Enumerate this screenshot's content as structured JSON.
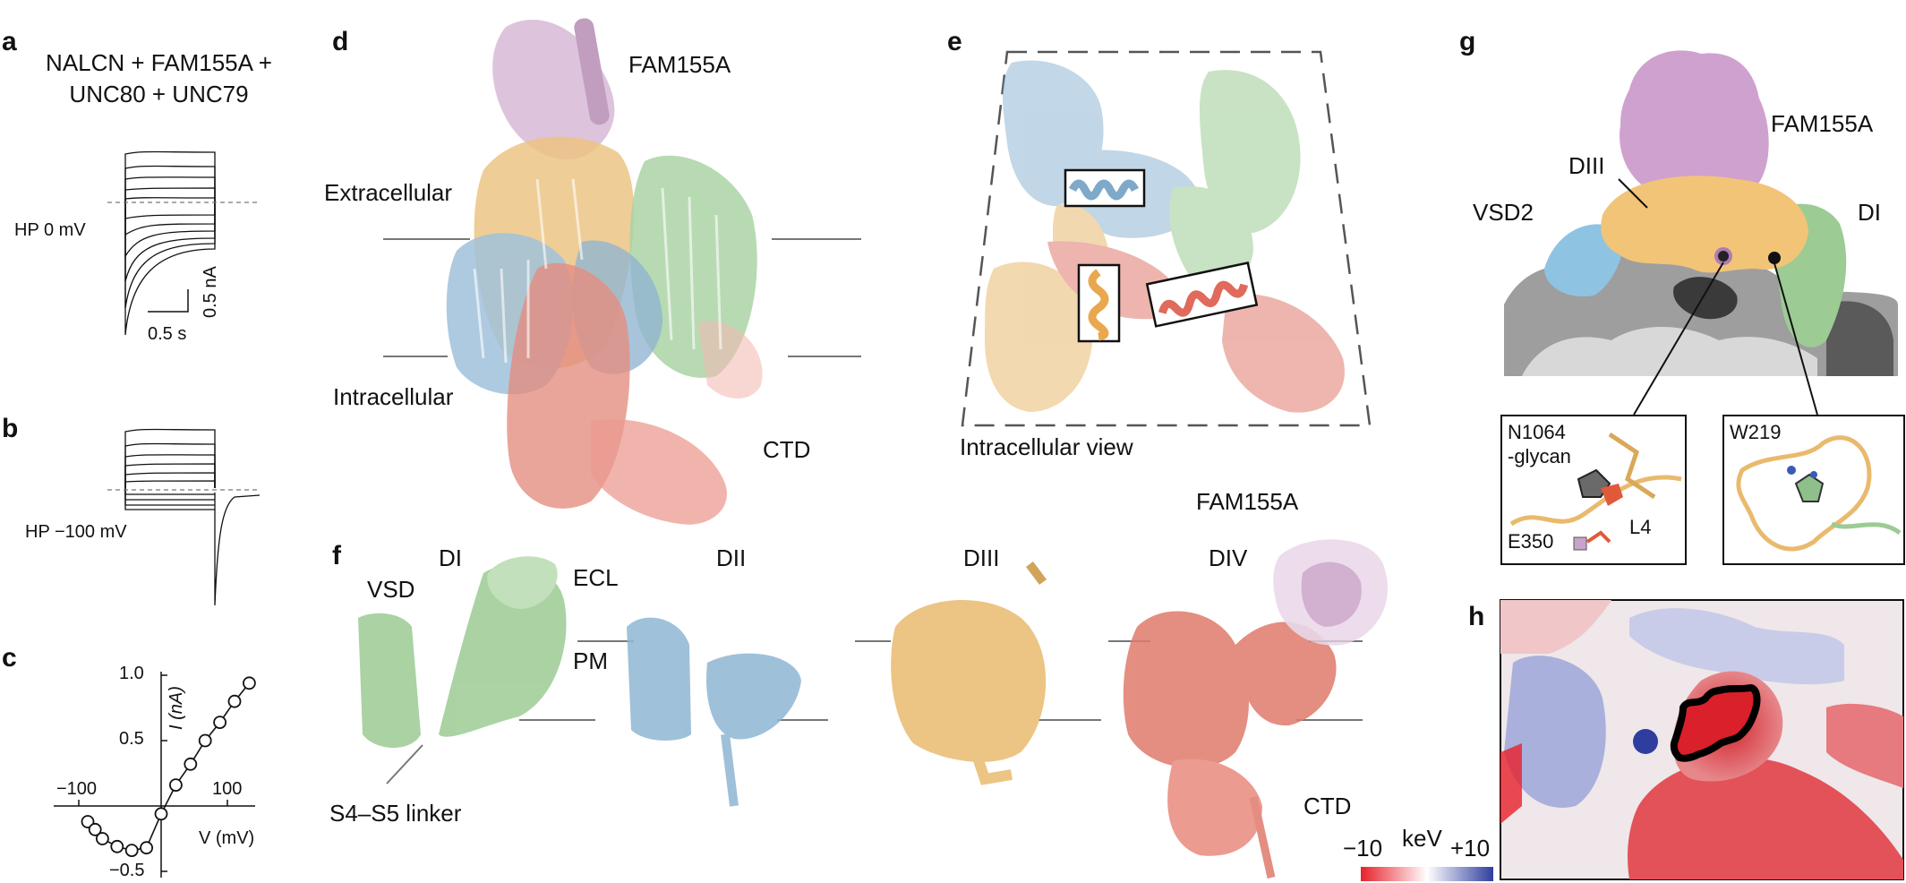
{
  "panels": {
    "a": {
      "letter": "a",
      "title_line1": "NALCN + FAM155A +",
      "title_line2": "UNC80 + UNC79",
      "holding": "HP 0 mV",
      "scale_time": "0.5 s",
      "scale_current": "0.5 nA"
    },
    "b": {
      "letter": "b",
      "holding": "HP −100 mV"
    },
    "c": {
      "letter": "c"
    },
    "d": {
      "letter": "d",
      "fam": "FAM155A",
      "extracellular": "Extracellular",
      "intracellular": "Intracellular",
      "ctd": "CTD"
    },
    "e": {
      "letter": "e",
      "caption": "Intracellular view"
    },
    "f": {
      "letter": "f",
      "vsd": "VSD",
      "di": "DI",
      "ecl": "ECL",
      "dii": "DII",
      "diii": "DIII",
      "div": "DIV",
      "fam": "FAM155A",
      "pm": "PM",
      "linker": "S4–S5 linker",
      "ctd": "CTD"
    },
    "g": {
      "letter": "g",
      "fam": "FAM155A",
      "diii": "DIII",
      "vsd2": "VSD2",
      "di": "DI",
      "inset1_line1": "N1064",
      "inset1_line2": "-glycan",
      "inset1_e350": "E350",
      "inset1_l4": "L4",
      "inset2_label": "W219"
    },
    "h": {
      "letter": "h",
      "unit": "keV",
      "min": "−10",
      "max": "+10"
    }
  },
  "colors": {
    "DI": "#9ccb94",
    "DII": "#8fb6d3",
    "DIII": "#e9ba6e",
    "DIV": "#e07a6c",
    "FAM155A": "#c9a3c8",
    "neg": "#e8202a",
    "pos": "#2f3e9e"
  },
  "chart_data": {
    "type": "scatter",
    "xlabel": "V (mV)",
    "ylabel": "I (nA)",
    "xticks": [
      -100,
      100
    ],
    "yticks": [
      1.0,
      0.5,
      -0.5
    ],
    "ytick_labels": [
      "1.0",
      "0.5",
      "−0.5"
    ],
    "xtick_labels": [
      "−100",
      "100"
    ],
    "xlim": [
      -110,
      125
    ],
    "ylim": [
      -0.55,
      1.05
    ],
    "points": [
      {
        "x": -100,
        "y": -0.12
      },
      {
        "x": -90,
        "y": -0.18
      },
      {
        "x": -80,
        "y": -0.25
      },
      {
        "x": -60,
        "y": -0.31
      },
      {
        "x": -40,
        "y": -0.34
      },
      {
        "x": -20,
        "y": -0.32
      },
      {
        "x": 0,
        "y": -0.06
      },
      {
        "x": 20,
        "y": 0.16
      },
      {
        "x": 40,
        "y": 0.32
      },
      {
        "x": 60,
        "y": 0.5
      },
      {
        "x": 80,
        "y": 0.64
      },
      {
        "x": 100,
        "y": 0.8
      },
      {
        "x": 120,
        "y": 0.94
      }
    ]
  }
}
